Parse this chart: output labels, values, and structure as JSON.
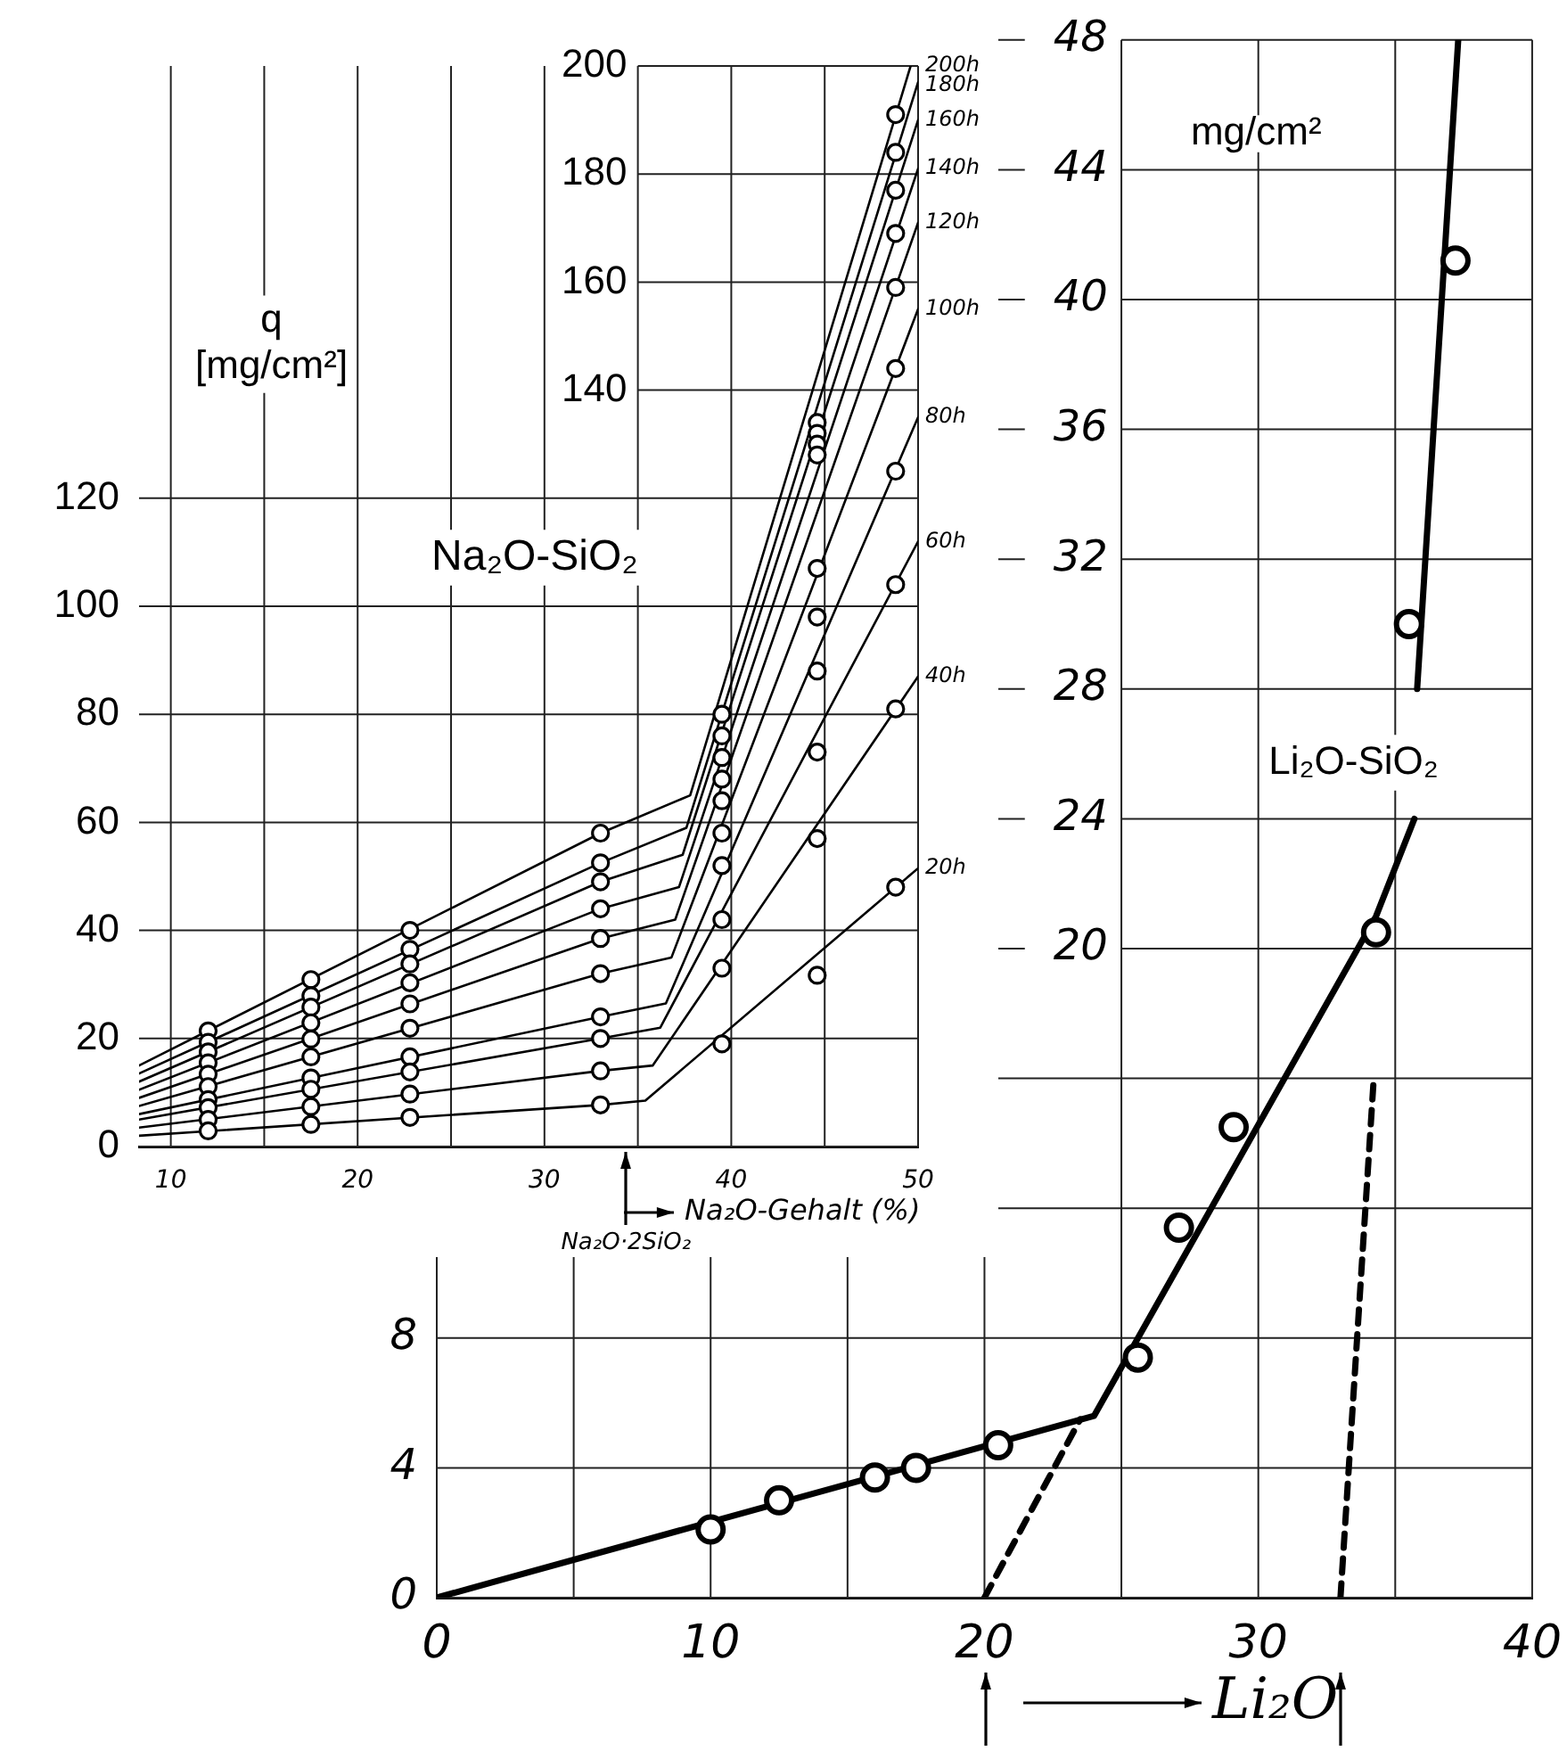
{
  "chart_data": [
    {
      "type": "line",
      "title": "Na₂O-SiO₂",
      "xlabel": "Na₂O-Gehalt (%)",
      "ylabel": "q [mg/cm²]",
      "xlim": [
        8.3,
        50
      ],
      "xticks": [
        10,
        {
          "value": 15,
          "label": null
        },
        20,
        {
          "value": 25,
          "label": null
        },
        30,
        {
          "value": 35,
          "label": null
        },
        40,
        {
          "value": 45,
          "label": null
        },
        50
      ],
      "ylim": [
        0,
        200
      ],
      "yticks": [
        0,
        20,
        40,
        60,
        80,
        100,
        120
      ],
      "y2lim": [
        0,
        200
      ],
      "y2ticks": [
        140,
        160,
        180,
        200
      ],
      "grid": true,
      "annotations": [
        "Na₂O·2SiO₂"
      ],
      "series": [
        {
          "name": "20h",
          "type": "line",
          "marker": "none",
          "color": "#000000",
          "x": [
            8.3,
            33,
            35.4,
            50
          ],
          "values": [
            2,
            7.7,
            8.5,
            51.5
          ]
        },
        {
          "name": "40h",
          "type": "line",
          "marker": "none",
          "color": "#000000",
          "x": [
            8.3,
            33,
            35.8,
            50
          ],
          "values": [
            3.5,
            14,
            15,
            87
          ]
        },
        {
          "name": "60h",
          "type": "line",
          "marker": "none",
          "color": "#000000",
          "x": [
            8.3,
            33,
            36.2,
            50
          ],
          "values": [
            5,
            20,
            22,
            112
          ]
        },
        {
          "name": "80h",
          "type": "line",
          "marker": "none",
          "color": "#000000",
          "x": [
            8.3,
            33,
            36.5,
            50
          ],
          "values": [
            6,
            24,
            26.5,
            135
          ]
        },
        {
          "name": "100h",
          "type": "line",
          "marker": "none",
          "color": "#000000",
          "x": [
            8.3,
            33,
            36.8,
            50
          ],
          "values": [
            7.5,
            32,
            35,
            155
          ]
        },
        {
          "name": "120h",
          "type": "line",
          "marker": "none",
          "color": "#000000",
          "x": [
            8.3,
            33,
            37,
            50
          ],
          "values": [
            9,
            38.5,
            42,
            171
          ]
        },
        {
          "name": "140h",
          "type": "line",
          "marker": "none",
          "color": "#000000",
          "x": [
            8.3,
            33,
            37.2,
            50
          ],
          "values": [
            10.5,
            44,
            48,
            181
          ]
        },
        {
          "name": "160h",
          "type": "line",
          "marker": "none",
          "color": "#000000",
          "x": [
            8.3,
            33,
            37.4,
            50
          ],
          "values": [
            12,
            49,
            54,
            190
          ]
        },
        {
          "name": "180h",
          "type": "line",
          "marker": "none",
          "color": "#000000",
          "x": [
            8.3,
            33,
            37.6,
            50
          ],
          "values": [
            13.5,
            52.5,
            59,
            197
          ]
        },
        {
          "name": "200h",
          "type": "line",
          "marker": "none",
          "color": "#000000",
          "x": [
            8.3,
            33,
            37.8,
            49.6
          ],
          "values": [
            15,
            58,
            65,
            200
          ]
        },
        {
          "type": "scatter",
          "marker": "circle",
          "color": "#000000",
          "x": [
            12,
            17.5,
            22.8,
            33,
            39.5,
            44.6,
            48.8
          ],
          "values": [
            2.9,
            4.1,
            5.4,
            7.7,
            19,
            31.7,
            48
          ]
        },
        {
          "type": "scatter",
          "marker": "circle",
          "color": "#000000",
          "x": [
            12,
            17.5,
            22.8,
            33,
            39.5,
            44.6,
            48.8
          ],
          "values": [
            5,
            7.4,
            9.7,
            14,
            33,
            57,
            81
          ]
        },
        {
          "type": "scatter",
          "marker": "circle",
          "color": "#000000",
          "x": [
            12,
            17.5,
            22.8,
            33,
            39.5,
            44.6,
            48.8
          ],
          "values": [
            7.2,
            10.6,
            13.8,
            20,
            42,
            73,
            104
          ]
        },
        {
          "type": "scatter",
          "marker": "circle",
          "color": "#000000",
          "x": [
            12,
            17.5,
            22.8,
            33,
            39.5,
            44.6,
            48.8
          ],
          "values": [
            8.7,
            12.7,
            16.6,
            24,
            52,
            88,
            125
          ]
        },
        {
          "type": "scatter",
          "marker": "circle",
          "color": "#000000",
          "x": [
            12,
            17.5,
            22.8,
            33,
            39.5,
            44.6,
            48.8
          ],
          "values": [
            11.1,
            16.6,
            21.9,
            32,
            58,
            98,
            144
          ]
        },
        {
          "type": "scatter",
          "marker": "circle",
          "color": "#000000",
          "x": [
            12,
            17.5,
            22.8,
            33,
            39.5,
            44.6,
            48.8
          ],
          "values": [
            13.4,
            19.9,
            26.4,
            38.5,
            64,
            107,
            159
          ]
        },
        {
          "type": "scatter",
          "marker": "circle",
          "color": "#000000",
          "x": [
            12,
            17.5,
            22.8,
            33,
            39.5,
            44.6,
            48.8
          ],
          "values": [
            15.5,
            22.9,
            30.3,
            44,
            68,
            128,
            169
          ]
        },
        {
          "type": "scatter",
          "marker": "circle",
          "color": "#000000",
          "x": [
            12,
            17.5,
            22.8,
            33,
            39.5,
            44.6,
            48.8
          ],
          "values": [
            17.5,
            25.8,
            33.8,
            49,
            72,
            130,
            177
          ]
        },
        {
          "type": "scatter",
          "marker": "circle",
          "color": "#000000",
          "x": [
            12,
            17.5,
            22.8,
            33,
            39.5,
            44.6,
            48.8
          ],
          "values": [
            19.3,
            27.9,
            36.5,
            52.5,
            76,
            132,
            184
          ]
        },
        {
          "type": "scatter",
          "marker": "circle",
          "color": "#000000",
          "x": [
            12,
            17.5,
            22.8,
            33,
            39.5,
            44.6,
            48.8
          ],
          "values": [
            21.4,
            30.9,
            40,
            58,
            80,
            134,
            191
          ]
        }
      ]
    },
    {
      "type": "line",
      "title": "Li₂O-SiO₂",
      "xlabel": "Li₂O",
      "annotations": [
        "mg/cm²"
      ],
      "xlim": [
        0,
        40
      ],
      "xticks": [
        0,
        {
          "value": 5,
          "label": null
        },
        10,
        {
          "value": 15,
          "label": null
        },
        20,
        {
          "value": 25,
          "label": null
        },
        30,
        {
          "value": 35,
          "label": null
        },
        40
      ],
      "ylim": [
        0,
        48
      ],
      "yticks": [
        0,
        4,
        8
      ],
      "y2lim": [
        0,
        48
      ],
      "y2ticks": [
        {
          "value": 12,
          "label": null
        },
        {
          "value": 16,
          "label": null
        },
        20,
        24,
        28,
        32,
        36,
        40,
        44,
        48
      ],
      "grid": true,
      "series": [
        {
          "type": "line",
          "marker": "none",
          "color": "#000000",
          "x": [
            0,
            24,
            34.3,
            35.7,
            35.75,
            35.8,
            37.3
          ],
          "values": [
            0,
            5.6,
            21,
            24,
            null,
            28,
            48
          ]
        },
        {
          "type": "line",
          "marker": "none",
          "line_style": "dashed",
          "color": "#000000",
          "x": [
            20,
            23.5
          ],
          "values": [
            0,
            5.5
          ]
        },
        {
          "type": "line",
          "marker": "none",
          "line_style": "dashed",
          "color": "#000000",
          "x": [
            33,
            34.2
          ],
          "values": [
            0,
            15.8
          ]
        },
        {
          "type": "scatter",
          "marker": "circle",
          "color": "#000000",
          "x": [
            10,
            12.5,
            16,
            17.5,
            20.5,
            25.6,
            27.1,
            29.1,
            34.3,
            35.5,
            37.2
          ],
          "values": [
            2.1,
            3,
            3.7,
            4,
            4.7,
            7.4,
            11.4,
            14.5,
            20.5,
            30,
            41.2
          ]
        }
      ]
    }
  ]
}
